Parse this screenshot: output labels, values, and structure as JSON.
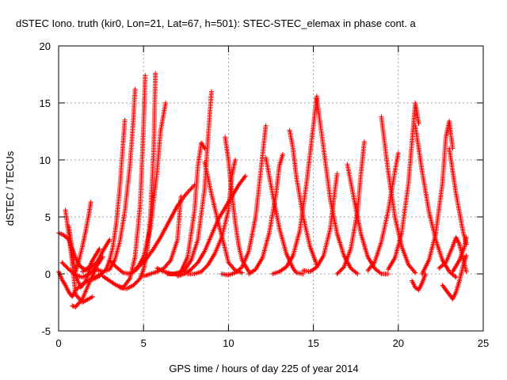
{
  "chart_data": {
    "type": "scatter",
    "title": "dSTEC Iono. truth (kir0, Lon=21, Lat=67, h=501): STEC-STEC_elemax in phase cont. a",
    "xlabel": "GPS time / hours of day 225 of year 2014",
    "ylabel": "dSTEC  / TECUs",
    "xlim": [
      0,
      25
    ],
    "ylim": [
      -5,
      20
    ],
    "x_ticks": [
      0,
      5,
      10,
      15,
      20,
      25
    ],
    "y_ticks": [
      -5,
      0,
      5,
      10,
      15,
      20
    ],
    "x_tick_labels": [
      "0",
      "5",
      "10",
      "15",
      "20",
      "25"
    ],
    "y_tick_labels": [
      "-5",
      "0",
      "5",
      "10",
      "15",
      "20"
    ],
    "grid": true,
    "marker": "+",
    "marker_color": "#ff0000",
    "series": [
      {
        "x": [
          0.0,
          0.3,
          0.6,
          0.8,
          1.0,
          1.2,
          1.4,
          1.6,
          1.8,
          2.0,
          2.4
        ],
        "y": [
          3.6,
          3.4,
          3.0,
          2.2,
          1.4,
          0.8,
          0.5,
          0.4,
          0.6,
          1.2,
          2.2
        ]
      },
      {
        "x": [
          0.0,
          0.2,
          0.4,
          0.6,
          0.8,
          1.0,
          1.5,
          2.0,
          2.5
        ],
        "y": [
          0.2,
          -0.5,
          -1.0,
          -1.6,
          -2.0,
          -1.4,
          -0.8,
          -0.4,
          0.0
        ]
      },
      {
        "x": [
          0.4,
          0.6,
          0.8,
          1.0,
          1.4,
          2.0
        ],
        "y": [
          5.6,
          3.4,
          1.0,
          -1.8,
          -2.5,
          -2.0
        ]
      },
      {
        "x": [
          0.6,
          0.8,
          1.0,
          1.3,
          1.6,
          1.8,
          2.0
        ],
        "y": [
          4.2,
          2.0,
          -0.2,
          -1.2,
          -0.6,
          0.3,
          1.2
        ]
      },
      {
        "x": [
          0.8,
          1.0,
          1.4,
          1.8,
          2.2
        ],
        "y": [
          -2.8,
          -2.9,
          -2.2,
          -0.8,
          0.5
        ]
      },
      {
        "x": [
          1.0,
          1.2,
          1.4,
          1.6,
          1.8,
          1.9
        ],
        "y": [
          0.2,
          1.2,
          2.4,
          3.8,
          5.4,
          6.3
        ]
      },
      {
        "x": [
          0.2,
          0.6,
          1.0,
          1.4,
          1.8,
          2.2,
          2.6
        ],
        "y": [
          1.0,
          0.4,
          -0.1,
          -0.3,
          0.0,
          0.6,
          1.5
        ]
      },
      {
        "x": [
          2.0,
          2.4,
          2.8,
          3.0,
          3.2,
          3.4,
          3.6,
          3.8,
          3.9
        ],
        "y": [
          -0.5,
          -0.2,
          0.4,
          1.2,
          2.4,
          4.5,
          7.5,
          11.5,
          13.5
        ]
      },
      {
        "x": [
          2.2,
          2.6,
          3.0,
          3.3,
          3.6,
          3.9,
          4.2,
          4.4,
          4.5
        ],
        "y": [
          0.4,
          0.2,
          0.4,
          1.2,
          2.8,
          5.5,
          9.5,
          13.5,
          16.2
        ]
      },
      {
        "x": [
          1.4,
          1.8,
          2.2,
          2.4,
          2.6,
          2.8,
          3.0
        ],
        "y": [
          0.2,
          0.5,
          0.9,
          1.4,
          2.0,
          2.5,
          3.0
        ]
      },
      {
        "x": [
          2.6,
          3.0,
          3.4,
          3.8,
          4.2,
          4.5,
          4.8,
          5.0,
          5.1
        ],
        "y": [
          -0.2,
          -0.6,
          -1.0,
          -1.2,
          -0.4,
          1.5,
          6.0,
          13.0,
          17.4
        ]
      },
      {
        "x": [
          3.0,
          3.4,
          3.8,
          4.2,
          4.6,
          5.0,
          5.4,
          5.8,
          6.0,
          6.3
        ],
        "y": [
          1.2,
          0.6,
          0.1,
          0.0,
          0.4,
          1.5,
          4.0,
          9.0,
          12.5,
          15.0
        ]
      },
      {
        "x": [
          3.6,
          4.0,
          4.4,
          4.8,
          5.0,
          5.2,
          5.4,
          5.6,
          5.7
        ],
        "y": [
          -1.2,
          -1.3,
          -1.0,
          -0.4,
          0.4,
          1.8,
          5.0,
          11.0,
          17.6
        ]
      },
      {
        "x": [
          4.5,
          5.0,
          5.5,
          6.0,
          6.5,
          7.0,
          7.5,
          8.0
        ],
        "y": [
          0.4,
          1.0,
          2.0,
          3.2,
          4.6,
          6.0,
          7.0,
          7.8
        ]
      },
      {
        "x": [
          5.0,
          5.4,
          5.8,
          6.2,
          6.6,
          7.0,
          7.2
        ],
        "y": [
          -0.2,
          0.0,
          0.2,
          0.5,
          1.2,
          3.0,
          6.8
        ]
      },
      {
        "x": [
          5.8,
          6.2,
          6.6,
          7.0,
          7.4,
          7.8,
          8.2,
          8.6,
          8.8,
          9.0
        ],
        "y": [
          0.5,
          0.2,
          0.0,
          0.0,
          0.3,
          1.2,
          3.0,
          7.5,
          12.0,
          16.0
        ]
      },
      {
        "x": [
          6.4,
          6.8,
          7.2,
          7.6,
          8.0,
          8.2,
          8.4,
          8.6
        ],
        "y": [
          0.0,
          0.0,
          0.2,
          1.5,
          5.5,
          9.5,
          11.5,
          11.0
        ]
      },
      {
        "x": [
          7.0,
          7.4,
          7.8,
          8.2,
          8.6,
          9.0,
          9.4,
          9.8,
          10.2,
          10.6,
          11.0
        ],
        "y": [
          -0.2,
          0.0,
          0.4,
          1.0,
          2.0,
          3.4,
          4.8,
          5.8,
          6.8,
          7.8,
          8.6
        ]
      },
      {
        "x": [
          8.6,
          9.0,
          9.4,
          9.8,
          10.0,
          10.4,
          10.8
        ],
        "y": [
          9.8,
          7.0,
          4.5,
          2.2,
          1.0,
          0.3,
          0.1
        ]
      },
      {
        "x": [
          7.6,
          8.0,
          8.4,
          8.8,
          9.2,
          9.6,
          10.0,
          10.2,
          10.4
        ],
        "y": [
          0.0,
          0.0,
          0.2,
          0.8,
          1.8,
          3.2,
          5.6,
          8.6,
          10.0
        ]
      },
      {
        "x": [
          9.6,
          10.0,
          10.4,
          10.8,
          11.2,
          11.6,
          11.9,
          12.2
        ],
        "y": [
          0.0,
          -0.1,
          0.1,
          0.6,
          2.0,
          5.0,
          9.0,
          13.0
        ]
      },
      {
        "x": [
          9.8,
          10.0,
          10.2,
          10.4,
          10.6,
          10.8,
          11.2
        ],
        "y": [
          12.0,
          10.0,
          7.0,
          4.5,
          2.5,
          1.2,
          0.2
        ]
      },
      {
        "x": [
          11.2,
          11.6,
          12.0,
          12.4,
          12.8,
          13.0,
          13.2
        ],
        "y": [
          0.0,
          0.4,
          1.4,
          3.6,
          7.0,
          9.5,
          10.5
        ]
      },
      {
        "x": [
          12.2,
          12.6,
          13.0,
          13.4,
          13.8,
          14.0,
          14.4
        ],
        "y": [
          10.2,
          7.0,
          4.0,
          1.8,
          0.5,
          0.1,
          0.0
        ]
      },
      {
        "x": [
          12.6,
          13.0,
          13.4,
          13.8,
          14.2,
          14.6,
          15.0,
          15.2
        ],
        "y": [
          0.0,
          0.2,
          0.6,
          1.6,
          3.8,
          8.0,
          13.0,
          15.6
        ]
      },
      {
        "x": [
          13.6,
          13.8,
          14.0,
          14.4,
          14.8,
          15.2
        ],
        "y": [
          12.6,
          11.0,
          8.5,
          5.0,
          2.4,
          0.8
        ]
      },
      {
        "x": [
          14.4,
          14.8,
          15.2,
          15.6,
          16.0,
          16.2,
          16.4
        ],
        "y": [
          0.3,
          0.2,
          0.6,
          1.6,
          4.0,
          6.5,
          8.8
        ]
      },
      {
        "x": [
          15.2,
          15.6,
          16.0,
          16.4,
          16.8,
          17.2,
          17.6
        ],
        "y": [
          15.4,
          11.0,
          6.5,
          3.5,
          1.6,
          0.5,
          0.0
        ]
      },
      {
        "x": [
          16.4,
          16.8,
          17.2,
          17.6,
          17.8,
          18.0
        ],
        "y": [
          0.0,
          0.6,
          2.2,
          5.5,
          8.8,
          11.6
        ]
      },
      {
        "x": [
          17.0,
          17.4,
          17.8,
          18.2,
          18.6,
          19.0,
          19.4
        ],
        "y": [
          9.6,
          6.5,
          3.5,
          1.5,
          0.5,
          0.0,
          0.0
        ]
      },
      {
        "x": [
          18.2,
          18.6,
          19.0,
          19.4,
          19.8,
          20.0
        ],
        "y": [
          0.3,
          1.0,
          2.8,
          5.5,
          9.0,
          10.6
        ]
      },
      {
        "x": [
          19.0,
          19.4,
          19.8,
          20.2,
          20.6,
          21.0
        ],
        "y": [
          13.8,
          9.0,
          5.0,
          2.4,
          0.8,
          0.1
        ]
      },
      {
        "x": [
          19.4,
          19.8,
          20.2,
          20.6,
          20.8,
          21.0,
          21.2
        ],
        "y": [
          0.4,
          1.4,
          3.6,
          8.0,
          11.5,
          15.0,
          13.2
        ]
      },
      {
        "x": [
          20.8,
          21.0,
          21.2,
          21.4,
          21.6
        ],
        "y": [
          -0.6,
          -1.2,
          -1.4,
          -0.8,
          0.0
        ]
      },
      {
        "x": [
          21.0,
          21.4,
          21.8,
          22.2,
          22.6,
          23.0,
          23.4
        ],
        "y": [
          13.0,
          9.0,
          5.5,
          3.0,
          1.2,
          0.2,
          -0.3
        ]
      },
      {
        "x": [
          21.4,
          21.8,
          22.2,
          22.6,
          22.8,
          23.0,
          23.2
        ],
        "y": [
          0.0,
          1.2,
          3.5,
          8.0,
          12.0,
          13.4,
          11.0
        ]
      },
      {
        "x": [
          22.4,
          22.8,
          23.2,
          23.4,
          23.6,
          23.8,
          24.0
        ],
        "y": [
          0.5,
          1.0,
          2.4,
          3.2,
          2.6,
          1.4,
          0.2
        ]
      },
      {
        "x": [
          22.6,
          23.0,
          23.2,
          23.4,
          23.6,
          23.8,
          24.0
        ],
        "y": [
          -1.0,
          -1.8,
          -2.2,
          -1.6,
          -0.6,
          0.6,
          1.6
        ]
      },
      {
        "x": [
          23.0,
          23.4,
          23.8,
          24.0
        ],
        "y": [
          11.0,
          7.0,
          3.8,
          2.6
        ]
      },
      {
        "x": [
          23.2,
          23.6,
          23.9,
          24.0
        ],
        "y": [
          0.2,
          1.2,
          2.4,
          3.2
        ]
      }
    ]
  }
}
